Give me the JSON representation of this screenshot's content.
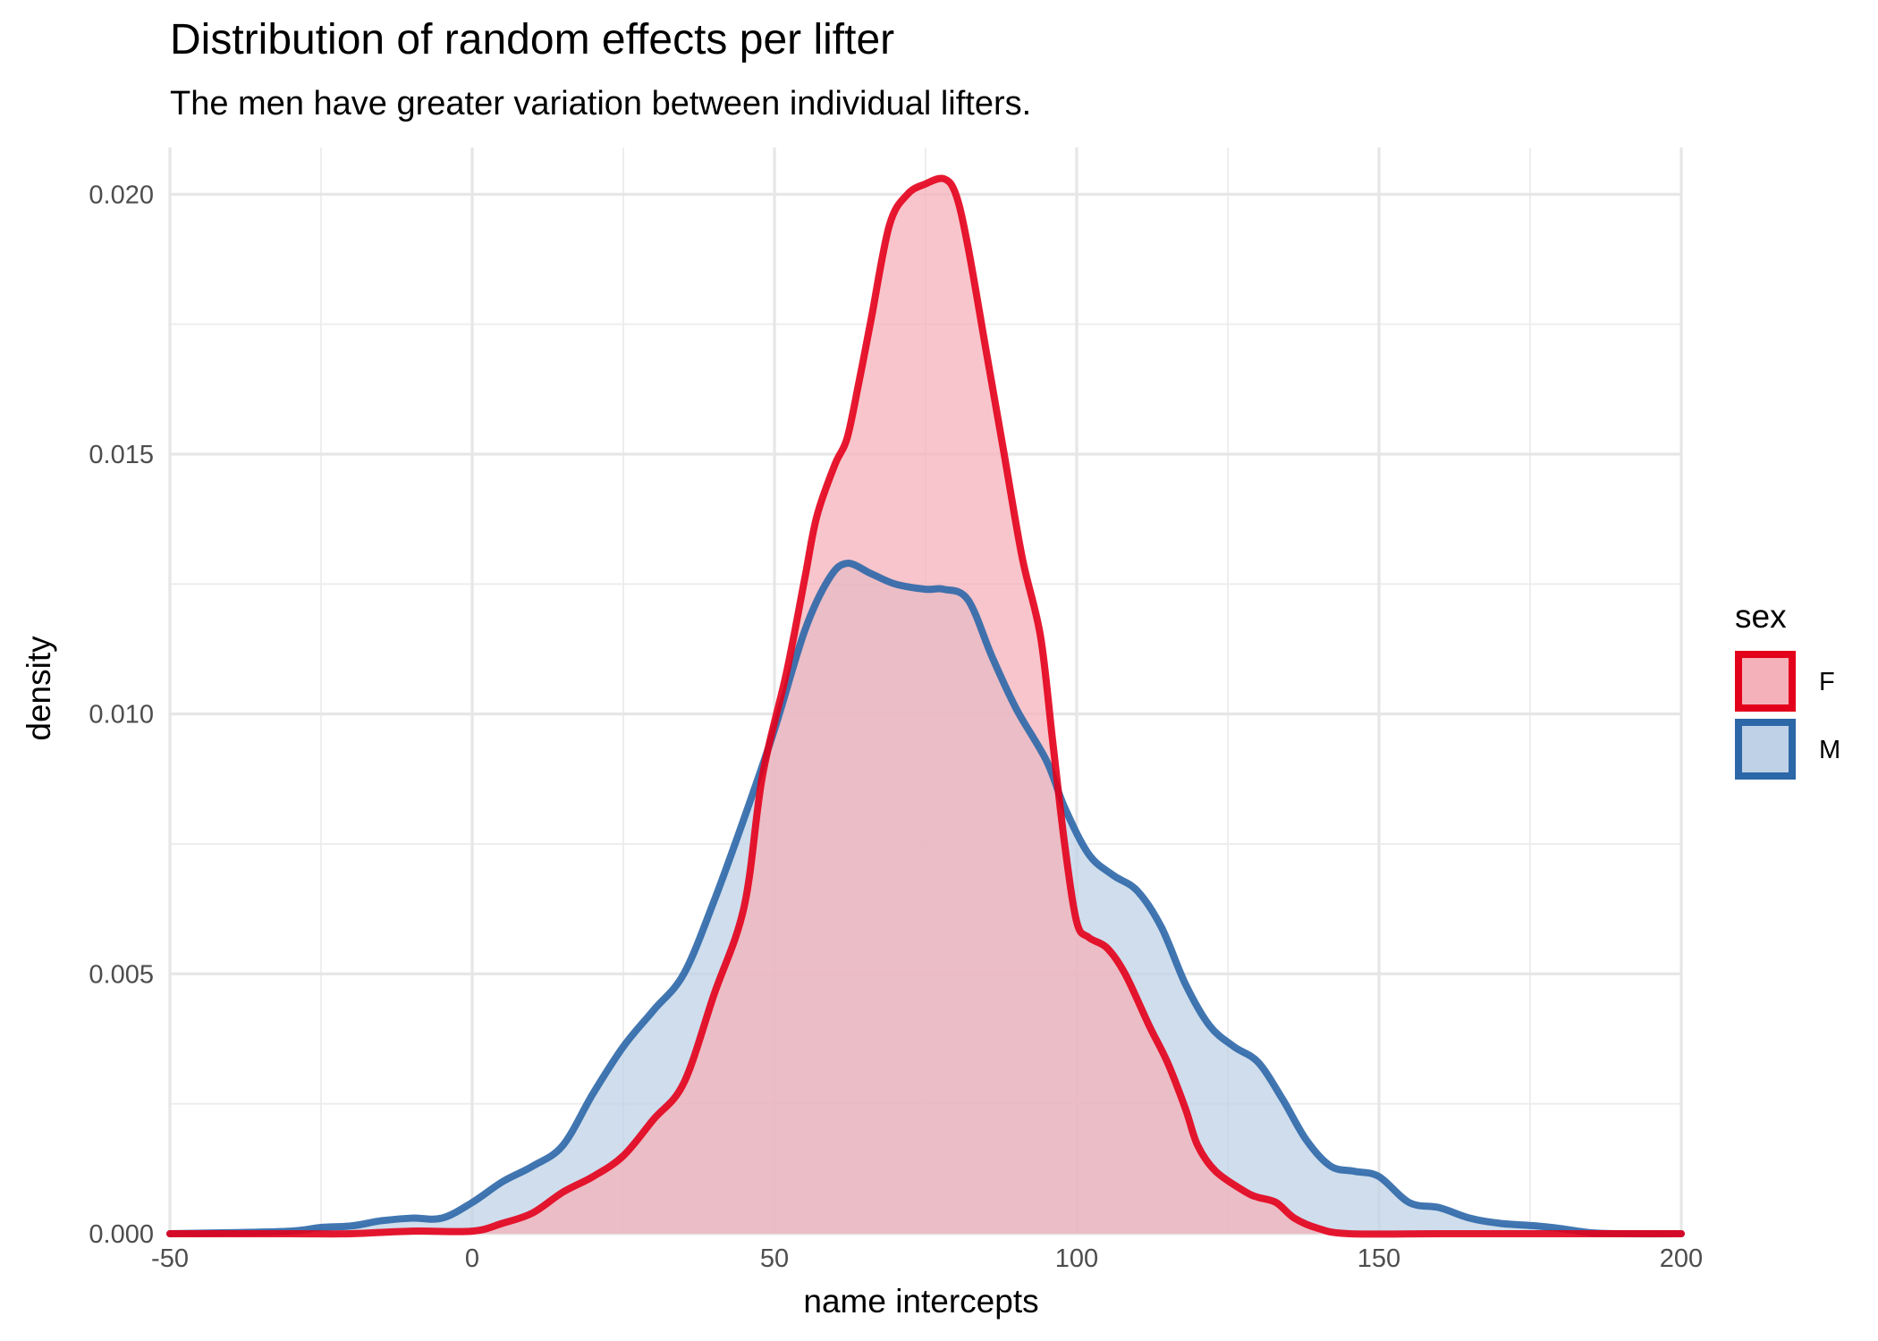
{
  "chart_data": {
    "type": "area",
    "title": "Distribution of random effects per lifter",
    "subtitle": "The men have greater variation between individual lifters.",
    "xlabel": "name intercepts",
    "ylabel": "density",
    "xlim": [
      -50,
      200
    ],
    "ylim": [
      0,
      0.0209
    ],
    "x_ticks": [
      -50,
      0,
      50,
      100,
      150,
      200
    ],
    "x_tick_labels": [
      "-50",
      "0",
      "50",
      "100",
      "150",
      "200"
    ],
    "y_ticks": [
      0,
      0.005,
      0.01,
      0.015,
      0.02
    ],
    "y_tick_labels": [
      "0.000",
      "0.005",
      "0.010",
      "0.015",
      "0.020"
    ],
    "grid": true,
    "legend": {
      "title": "sex",
      "position": "right"
    },
    "series": [
      {
        "name": "F",
        "line_color": "#E3001B",
        "fill_color": "#F4B1B9",
        "points": [
          [
            -50,
            0
          ],
          [
            -30,
            0
          ],
          [
            -20,
            0
          ],
          [
            -10,
            5e-05
          ],
          [
            0,
            5e-05
          ],
          [
            5,
            0.0002
          ],
          [
            10,
            0.0004
          ],
          [
            15,
            0.0008
          ],
          [
            20,
            0.0011
          ],
          [
            25,
            0.0015
          ],
          [
            30,
            0.0022
          ],
          [
            35,
            0.0029
          ],
          [
            40,
            0.0046
          ],
          [
            45,
            0.0063
          ],
          [
            48,
            0.0088
          ],
          [
            52,
            0.0108
          ],
          [
            55,
            0.0126
          ],
          [
            57,
            0.0138
          ],
          [
            60,
            0.0148
          ],
          [
            62,
            0.0153
          ],
          [
            64,
            0.0164
          ],
          [
            66,
            0.0176
          ],
          [
            69,
            0.0194
          ],
          [
            72,
            0.02
          ],
          [
            75,
            0.0202
          ],
          [
            78,
            0.0203
          ],
          [
            80,
            0.02
          ],
          [
            82,
            0.019
          ],
          [
            85,
            0.017
          ],
          [
            88,
            0.015
          ],
          [
            91,
            0.013
          ],
          [
            94,
            0.0115
          ],
          [
            96,
            0.0095
          ],
          [
            98,
            0.0075
          ],
          [
            100,
            0.006
          ],
          [
            102,
            0.0057
          ],
          [
            105,
            0.0055
          ],
          [
            108,
            0.005
          ],
          [
            112,
            0.004
          ],
          [
            115,
            0.0033
          ],
          [
            118,
            0.0024
          ],
          [
            120,
            0.0017
          ],
          [
            123,
            0.0012
          ],
          [
            128,
            0.0008
          ],
          [
            130,
            0.0007
          ],
          [
            133,
            0.0006
          ],
          [
            136,
            0.0003
          ],
          [
            140,
            0.0001
          ],
          [
            145,
            0
          ],
          [
            160,
            0
          ],
          [
            180,
            0
          ],
          [
            200,
            0
          ]
        ]
      },
      {
        "name": "M",
        "line_color": "#2C67A8",
        "fill_color": "#BFD1E6",
        "points": [
          [
            -50,
            0
          ],
          [
            -40,
            2e-05
          ],
          [
            -30,
            5e-05
          ],
          [
            -25,
            0.00012
          ],
          [
            -20,
            0.00015
          ],
          [
            -15,
            0.00025
          ],
          [
            -10,
            0.0003
          ],
          [
            -5,
            0.0003
          ],
          [
            0,
            0.0006
          ],
          [
            5,
            0.001
          ],
          [
            10,
            0.0013
          ],
          [
            15,
            0.0017
          ],
          [
            20,
            0.0027
          ],
          [
            25,
            0.0036
          ],
          [
            30,
            0.0043
          ],
          [
            35,
            0.005
          ],
          [
            40,
            0.0064
          ],
          [
            45,
            0.008
          ],
          [
            50,
            0.0097
          ],
          [
            55,
            0.0116
          ],
          [
            59,
            0.0126
          ],
          [
            62,
            0.0129
          ],
          [
            66,
            0.0127
          ],
          [
            70,
            0.0125
          ],
          [
            75,
            0.0124
          ],
          [
            78,
            0.0124
          ],
          [
            82,
            0.0122
          ],
          [
            86,
            0.0111
          ],
          [
            90,
            0.0101
          ],
          [
            95,
            0.0091
          ],
          [
            98,
            0.0082
          ],
          [
            102,
            0.0073
          ],
          [
            106,
            0.0069
          ],
          [
            110,
            0.0066
          ],
          [
            114,
            0.0059
          ],
          [
            118,
            0.0048
          ],
          [
            122,
            0.004
          ],
          [
            126,
            0.0036
          ],
          [
            130,
            0.0033
          ],
          [
            134,
            0.0026
          ],
          [
            138,
            0.0018
          ],
          [
            142,
            0.0013
          ],
          [
            146,
            0.0012
          ],
          [
            150,
            0.0011
          ],
          [
            155,
            0.0006
          ],
          [
            160,
            0.0005
          ],
          [
            165,
            0.0003
          ],
          [
            170,
            0.0002
          ],
          [
            176,
            0.00015
          ],
          [
            180,
            0.0001
          ],
          [
            185,
            2e-05
          ],
          [
            190,
            0
          ],
          [
            200,
            0
          ]
        ]
      }
    ]
  }
}
